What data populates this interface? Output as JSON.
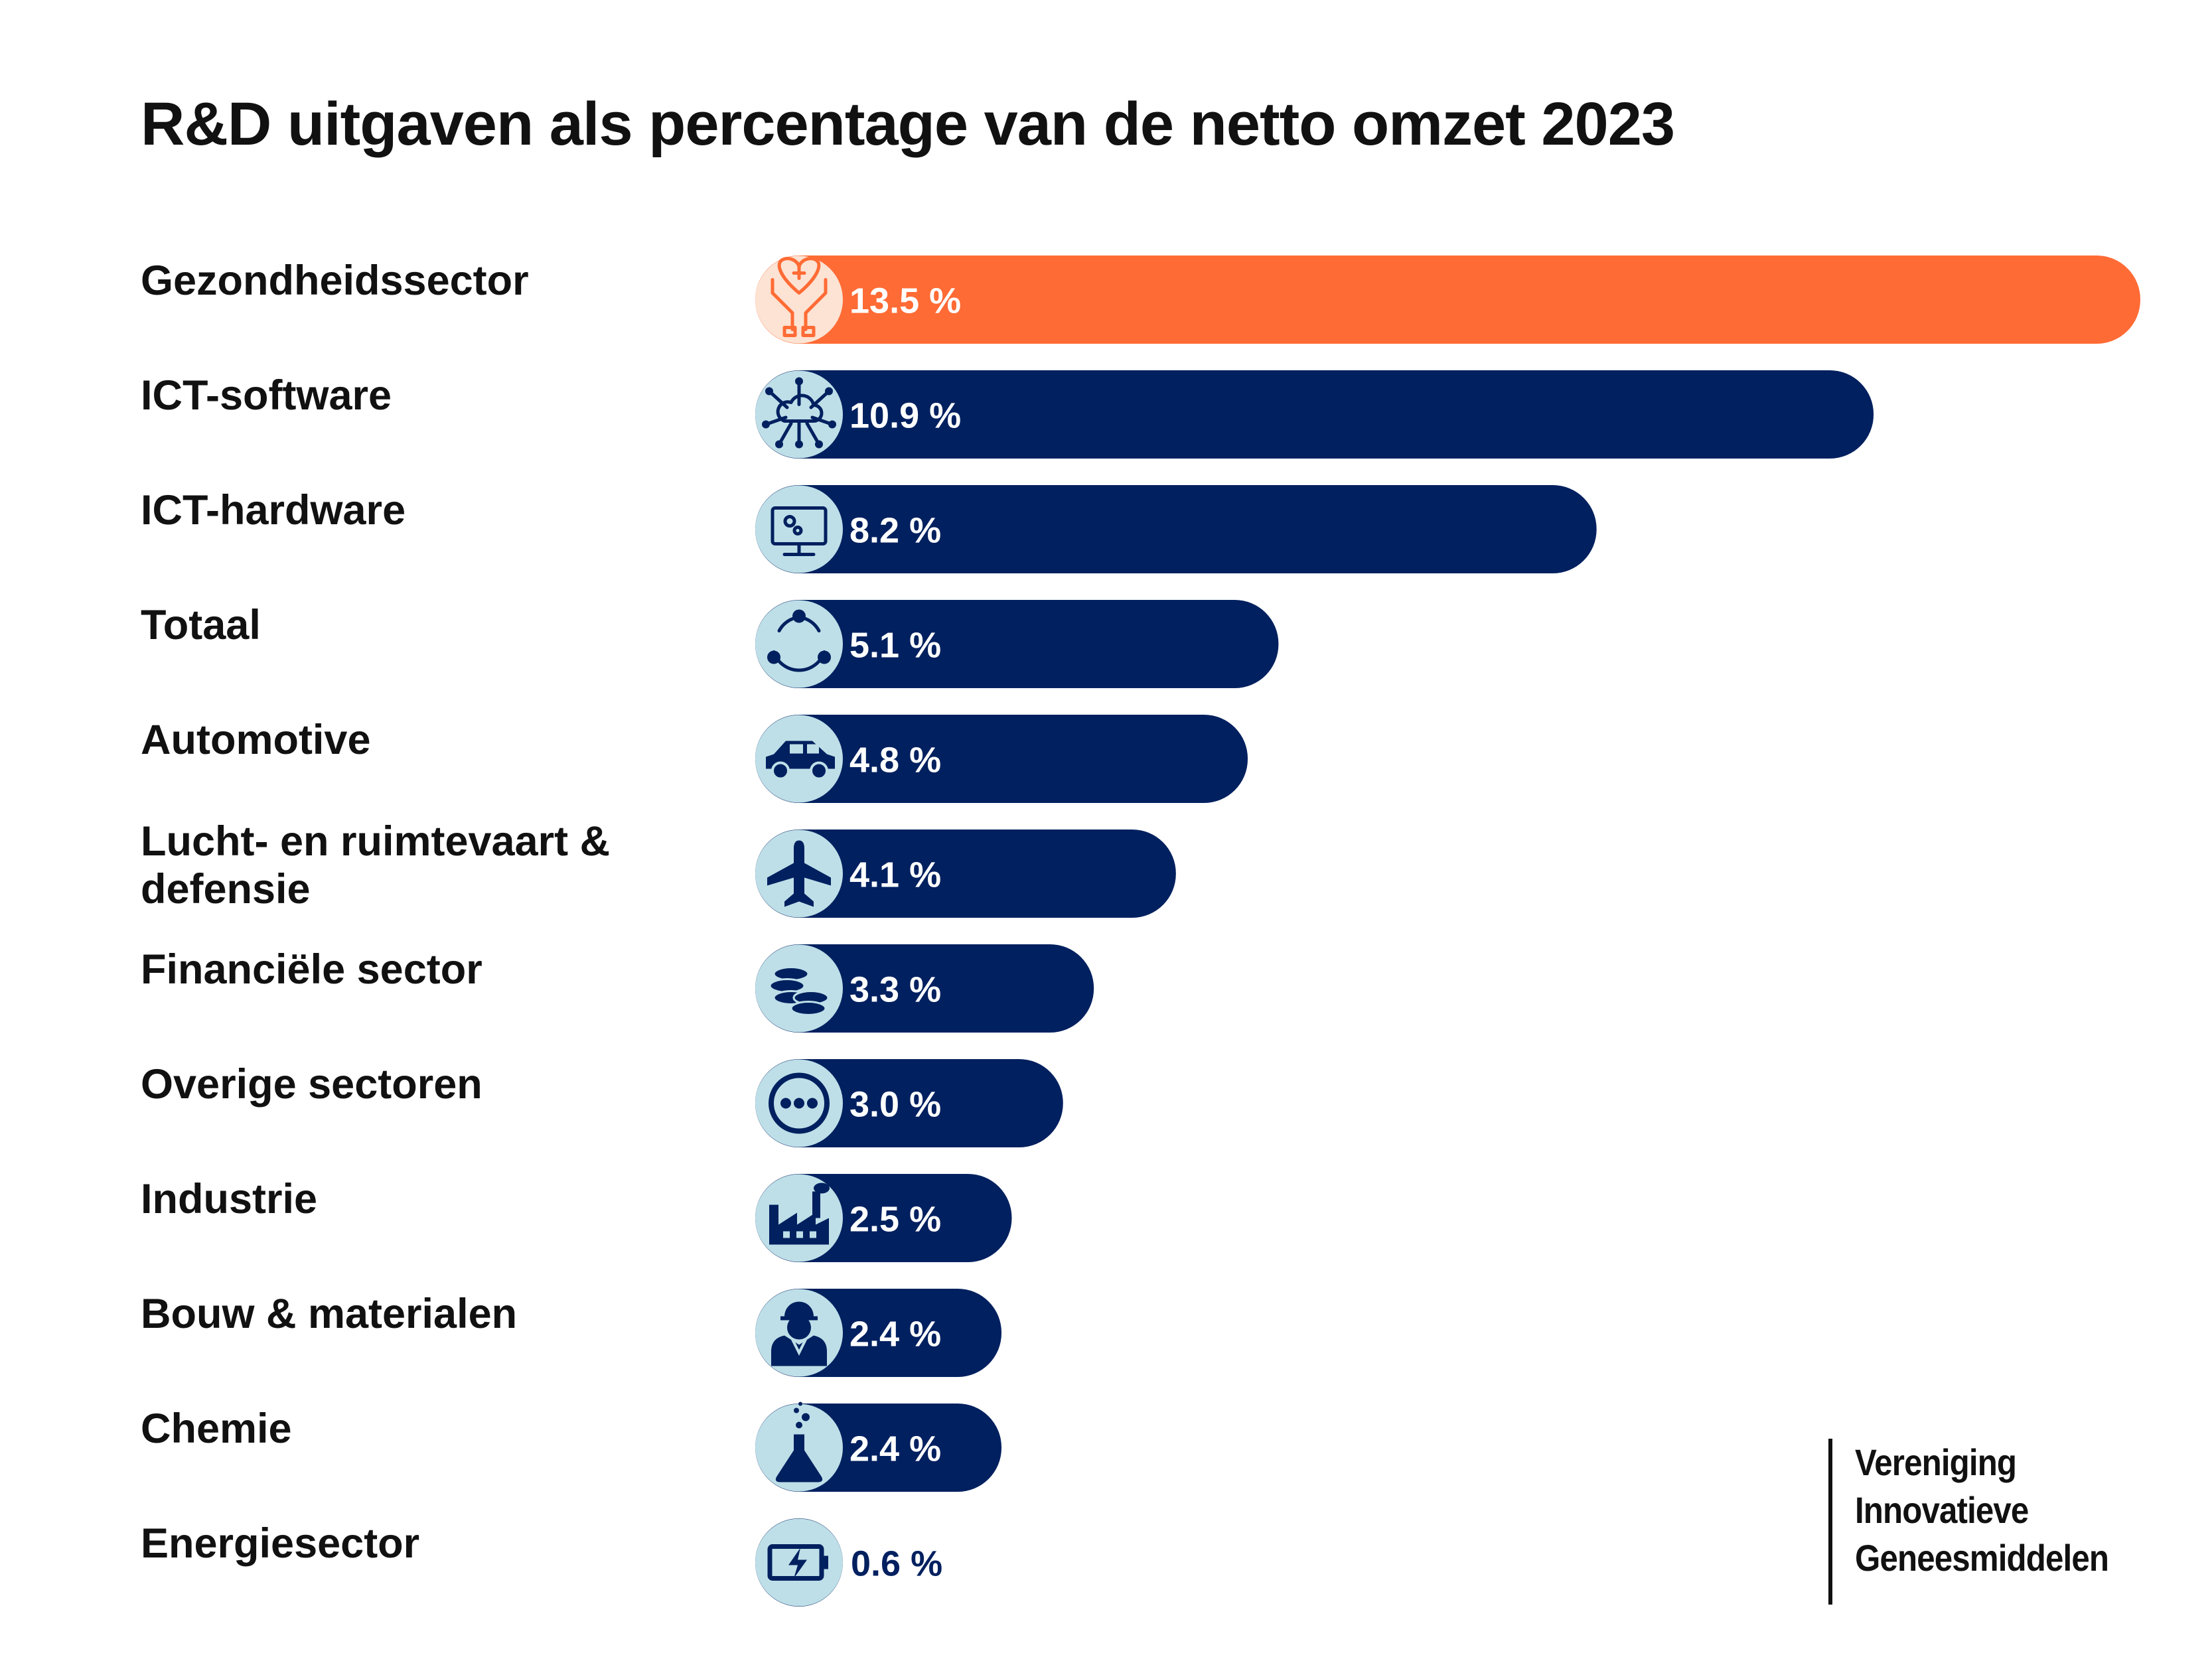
{
  "colors": {
    "highlight": "#FF6B35",
    "bar": "#00205F",
    "icon_bg_highlight": "#FCE3D3",
    "icon_bg": "#BEDFE8",
    "value_text": "#ffffff",
    "value_text_outside": "#00205F"
  },
  "chart_data": {
    "type": "bar",
    "orientation": "horizontal",
    "title": "R&D uitgaven als percentage van de netto omzet 2023",
    "xlim": [
      0,
      13.5
    ],
    "categories": [
      "Gezondheidssector",
      "ICT-software",
      "ICT-hardware",
      "Totaal",
      "Automotive",
      "Lucht- en ruimtevaart & defensie",
      "Financiële sector",
      "Overige sectoren",
      "Industrie",
      "Bouw & materialen",
      "Chemie",
      "Energiesector"
    ],
    "values": [
      13.5,
      10.9,
      8.2,
      5.1,
      4.8,
      4.1,
      3.3,
      3.0,
      2.5,
      2.4,
      2.4,
      0.6
    ],
    "value_labels": [
      "13.5 %",
      "10.9 %",
      "8.2 %",
      "5.1 %",
      "4.8 %",
      "4.1 %",
      "3.3 %",
      "3.0 %",
      "2.5 %",
      "2.4 %",
      "2.4 %",
      "0.6 %"
    ],
    "icons": [
      "heart-hands-icon",
      "cloud-network-icon",
      "computer-monitor-icon",
      "cycle-icon",
      "car-icon",
      "airplane-icon",
      "coins-icon",
      "more-dots-icon",
      "factory-icon",
      "worker-icon",
      "flask-icon",
      "battery-icon"
    ],
    "highlighted_category": "Gezondheidssector"
  },
  "logo": {
    "lines": [
      "Vereniging",
      "Innovatieve",
      "Geneesmiddelen"
    ]
  }
}
